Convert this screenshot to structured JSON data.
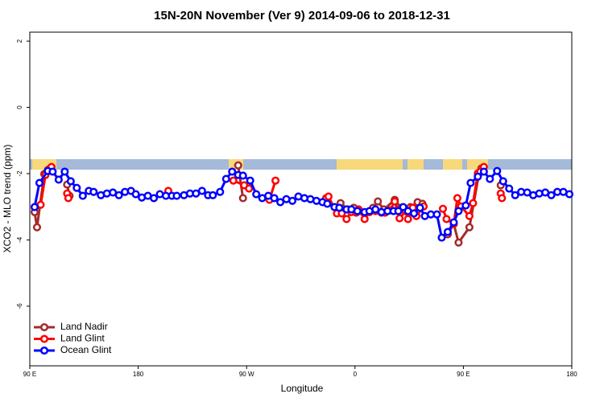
{
  "chart_data": {
    "type": "line",
    "title": "15N-20N November (Ver 9)   2014-09-06 to 2018-12-31",
    "x_label": "Longitude",
    "y_label": "XCO2 - MLO trend (ppm)",
    "xlim": [
      90,
      540
    ],
    "ylim": [
      -7.8,
      2.27
    ],
    "xticks": [
      {
        "value": 90,
        "label": "90 E"
      },
      180,
      {
        "value": 270,
        "label": "90 W"
      },
      {
        "value": 360,
        "label": "0"
      },
      {
        "value": 450,
        "label": "90 E"
      },
      {
        "value": 540,
        "label": "180"
      }
    ],
    "yticks": [
      2,
      0,
      -2,
      -4,
      -6
    ],
    "legend": "bottom-left",
    "series": [
      {
        "name": "Land Nadir",
        "color": "#a52a2a",
        "x": [
          94,
          96,
          102,
          105,
          107,
          null,
          121,
          123,
          null,
          263,
          267,
          null,
          348,
          354,
          359,
          364,
          370,
          375,
          379,
          384,
          393,
          398,
          406,
          412,
          416,
          null,
          437,
          442,
          446,
          455,
          463,
          465,
          null,
          481
        ],
        "values": [
          -3.16,
          -3.62,
          -2.01,
          -1.89,
          -1.84,
          null,
          -2.33,
          -2.67,
          null,
          -1.75,
          -2.74,
          null,
          -2.89,
          -3.08,
          -3.03,
          -3.13,
          -3.16,
          -3.03,
          -2.84,
          -3.08,
          -2.79,
          -3.03,
          -3.01,
          -2.86,
          -2.91,
          null,
          -3.83,
          -3.52,
          -4.08,
          -3.62,
          -1.99,
          -1.84,
          null,
          -2.35
        ]
      },
      {
        "name": "Land Glint",
        "color": "#ff0000",
        "x": [
          99,
          103,
          106,
          108,
          null,
          121,
          122,
          null,
          205,
          null,
          259,
          268,
          272,
          null,
          289,
          294,
          null,
          336,
          338,
          345,
          349,
          353,
          357,
          361,
          363,
          368,
          372,
          377,
          382,
          385,
          389,
          393,
          397,
          402,
          404,
          408,
          411,
          417,
          null,
          433,
          436,
          442,
          445,
          448,
          455,
          458,
          462,
          464,
          467,
          null,
          481,
          482
        ],
        "values": [
          -2.94,
          -2.04,
          -1.87,
          -1.8,
          null,
          -2.6,
          -2.74,
          null,
          -2.52,
          null,
          -2.21,
          -2.35,
          -2.45,
          null,
          -2.79,
          -2.21,
          null,
          -2.74,
          -2.69,
          -3.2,
          -3.2,
          -3.37,
          -3.16,
          -3.18,
          -3.08,
          -3.37,
          -3.16,
          -3.13,
          -3.18,
          -3.18,
          -3.11,
          -2.84,
          -3.35,
          -3.13,
          -3.37,
          -3.03,
          -3.28,
          -2.99,
          null,
          -3.06,
          -3.37,
          -3.52,
          -2.74,
          -2.99,
          -3.28,
          -2.89,
          -1.99,
          -1.94,
          -1.8,
          null,
          -2.6,
          -2.74
        ]
      },
      {
        "name": "Ocean Glint",
        "color": "#0000ff",
        "x": [
          94,
          98,
          105,
          109,
          114,
          119,
          124,
          129,
          134,
          139,
          143,
          149,
          154,
          159,
          164,
          169,
          174,
          178,
          183,
          188,
          193,
          198,
          203,
          208,
          212,
          218,
          223,
          228,
          233,
          238,
          242,
          248,
          253,
          258,
          263,
          267,
          273,
          278,
          283,
          288,
          293,
          298,
          303,
          308,
          313,
          318,
          323,
          328,
          333,
          337,
          343,
          347,
          353,
          357,
          362,
          368,
          372,
          377,
          382,
          387,
          392,
          396,
          400,
          404,
          409,
          414,
          418,
          423,
          428,
          432,
          437,
          442,
          446,
          452,
          456,
          462,
          467,
          472,
          478,
          483,
          488,
          493,
          498,
          503,
          508,
          513,
          518,
          523,
          528,
          533,
          538
        ],
        "values": [
          -3.01,
          -2.28,
          -1.92,
          -1.94,
          -2.18,
          -1.94,
          -2.23,
          -2.43,
          -2.67,
          -2.52,
          -2.55,
          -2.65,
          -2.6,
          -2.57,
          -2.65,
          -2.55,
          -2.52,
          -2.62,
          -2.72,
          -2.67,
          -2.74,
          -2.62,
          -2.67,
          -2.67,
          -2.67,
          -2.65,
          -2.6,
          -2.6,
          -2.52,
          -2.65,
          -2.65,
          -2.55,
          -2.16,
          -1.94,
          -2.04,
          -2.06,
          -2.21,
          -2.62,
          -2.74,
          -2.67,
          -2.74,
          -2.86,
          -2.77,
          -2.82,
          -2.69,
          -2.74,
          -2.77,
          -2.82,
          -2.86,
          -2.91,
          -3.01,
          -3.03,
          -3.08,
          -3.08,
          -3.13,
          -3.16,
          -3.13,
          -3.08,
          -3.16,
          -3.13,
          -3.13,
          -3.13,
          -3.01,
          -3.13,
          -3.2,
          -3.03,
          -3.28,
          -3.23,
          -3.23,
          -3.93,
          -3.76,
          -3.47,
          -3.13,
          -2.96,
          -2.28,
          -2.09,
          -1.94,
          -2.16,
          -1.92,
          -2.23,
          -2.45,
          -2.65,
          -2.55,
          -2.57,
          -2.65,
          -2.6,
          -2.57,
          -2.65,
          -2.55,
          -2.55,
          -2.62
        ]
      }
    ]
  }
}
